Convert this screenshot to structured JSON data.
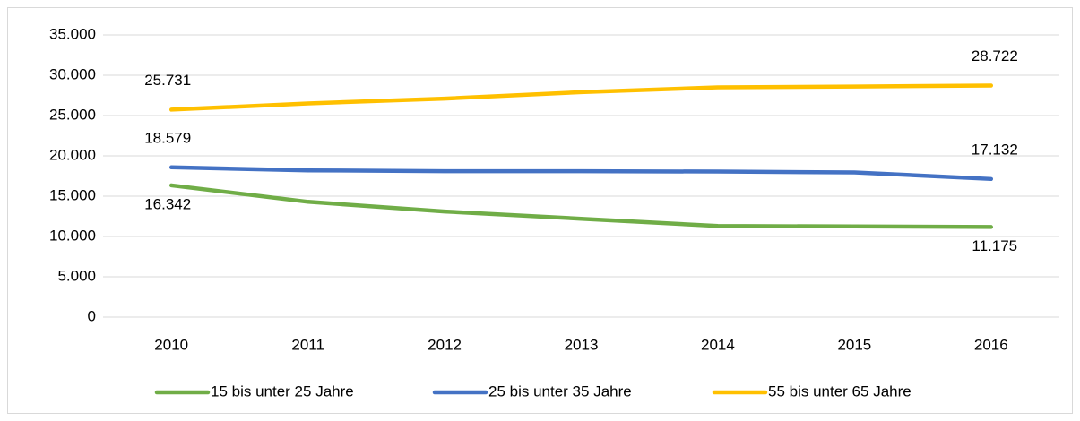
{
  "chart_data": {
    "type": "line",
    "x": [
      "2010",
      "2011",
      "2012",
      "2013",
      "2014",
      "2015",
      "2016"
    ],
    "series": [
      {
        "name": "15 bis unter 25 Jahre",
        "color": "#70ad47",
        "values": [
          16342,
          14300,
          13100,
          12200,
          11300,
          11250,
          11175
        ],
        "value_labels": [
          "16.342",
          null,
          null,
          null,
          null,
          null,
          "11.175"
        ]
      },
      {
        "name": "25 bis unter 35 Jahre",
        "color": "#4472c4",
        "values": [
          18579,
          18200,
          18100,
          18100,
          18050,
          17950,
          17132
        ],
        "value_labels": [
          "18.579",
          null,
          null,
          null,
          null,
          null,
          "17.132"
        ]
      },
      {
        "name": "55 bis unter 65 Jahre",
        "color": "#ffc000",
        "values": [
          25731,
          26500,
          27100,
          27900,
          28500,
          28600,
          28722
        ],
        "value_labels": [
          "25.731",
          null,
          null,
          null,
          null,
          null,
          "28.722"
        ]
      }
    ],
    "ylim": [
      0,
      35000
    ],
    "yticks": [
      0,
      {
        "value": 5000,
        "label": "5.000"
      },
      {
        "value": 10000,
        "label": "10.000"
      },
      {
        "value": 15000,
        "label": "15.000"
      },
      {
        "value": 20000,
        "label": "20.000"
      },
      {
        "value": 25000,
        "label": "25.000"
      },
      {
        "value": 30000,
        "label": "30.000"
      },
      {
        "value": 35000,
        "label": "35.000"
      }
    ],
    "grid": true,
    "legend": "bottom"
  }
}
